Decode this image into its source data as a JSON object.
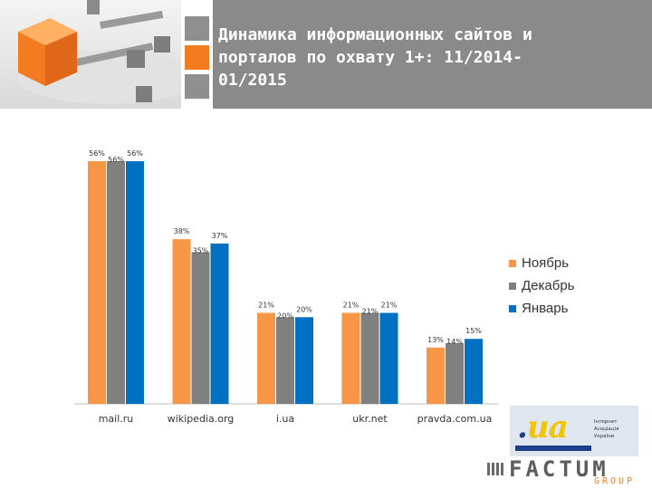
{
  "header": {
    "title_line1": "Динамика информационных сайтов и",
    "title_line2": "порталов по охвату 1+: 11/2014-",
    "title_line3": "01/2015"
  },
  "colors": {
    "nov": "#f79646",
    "dec": "#808080",
    "jan": "#0070c0",
    "header_gray": "#8a8a8a",
    "accent": "#f47c20"
  },
  "chart_data": {
    "type": "bar",
    "title": "Динамика информационных сайтов и порталов по охвату 1+: 11/2014-01/2015",
    "categories": [
      "mail.ru",
      "wikipedia.org",
      "i.ua",
      "ukr.net",
      "pravda.com.ua"
    ],
    "series": [
      {
        "name": "Ноябрь",
        "values": [
          56,
          38,
          21,
          21,
          13
        ],
        "labels": [
          "56%",
          "38%",
          "21%",
          "21%",
          "13%"
        ]
      },
      {
        "name": "Декабрь",
        "values": [
          56,
          35,
          20,
          21,
          14
        ],
        "labels": [
          "56%",
          "35%",
          "20%",
          "21%",
          "14%"
        ]
      },
      {
        "name": "Январь",
        "values": [
          56,
          37,
          20,
          21,
          15
        ],
        "labels": [
          "56%",
          "37%",
          "20%",
          "21%",
          "15%"
        ]
      }
    ],
    "ylim": [
      0,
      56
    ],
    "legend": "right",
    "grid": false
  },
  "logos": {
    "uia_mark_dot": ".",
    "uia_mark": "ua",
    "uia_text": "Інтернет Асоціація України",
    "factum_word": "FACTUM",
    "factum_group": "GROUP"
  }
}
